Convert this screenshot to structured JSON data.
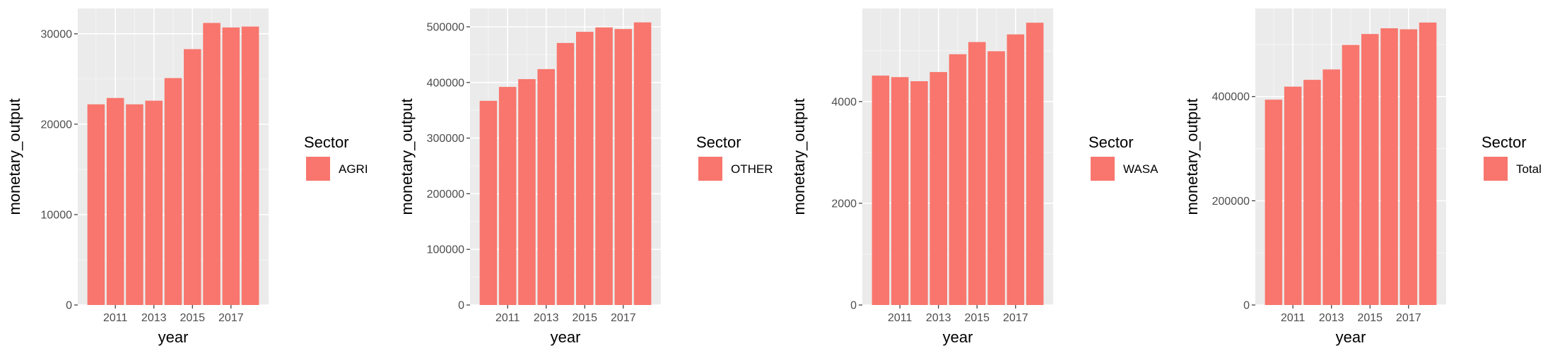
{
  "colors": {
    "panel_bg": "#ebebeb",
    "grid_major": "#ffffff",
    "bar_fill": "#f8766d",
    "tick_text": "#4d4d4d"
  },
  "chart_data": [
    {
      "type": "bar",
      "x": [
        2010,
        2011,
        2012,
        2013,
        2014,
        2015,
        2016,
        2017,
        2018
      ],
      "values": [
        22200,
        22900,
        22200,
        22600,
        25100,
        28300,
        31200,
        30700,
        30800
      ],
      "xlabel": "year",
      "ylabel": "monetary_output",
      "ylim": [
        0,
        32800
      ],
      "xticks": [
        2011,
        2013,
        2015,
        2017
      ],
      "yticks": [
        0,
        10000,
        20000,
        30000
      ],
      "ytick_labels": [
        "0",
        "10000",
        "20000",
        "30000"
      ],
      "legend_title": "Sector",
      "legend_label": "AGRI",
      "grid": true,
      "legend_position": "right"
    },
    {
      "type": "bar",
      "x": [
        2010,
        2011,
        2012,
        2013,
        2014,
        2015,
        2016,
        2017,
        2018
      ],
      "values": [
        367000,
        392000,
        406000,
        424000,
        471000,
        491000,
        499000,
        496000,
        508000
      ],
      "xlabel": "year",
      "ylabel": "monetary_output",
      "ylim": [
        0,
        533000
      ],
      "xticks": [
        2011,
        2013,
        2015,
        2017
      ],
      "yticks": [
        0,
        100000,
        200000,
        300000,
        400000,
        500000
      ],
      "ytick_labels": [
        "0",
        "100000",
        "200000",
        "300000",
        "400000",
        "500000"
      ],
      "legend_title": "Sector",
      "legend_label": "OTHER",
      "grid": true,
      "legend_position": "right"
    },
    {
      "type": "bar",
      "x": [
        2010,
        2011,
        2012,
        2013,
        2014,
        2015,
        2016,
        2017,
        2018
      ],
      "values": [
        4510,
        4480,
        4400,
        4580,
        4930,
        5170,
        4990,
        5320,
        5550
      ],
      "xlabel": "year",
      "ylabel": "monetary_output",
      "ylim": [
        0,
        5830
      ],
      "xticks": [
        2011,
        2013,
        2015,
        2017
      ],
      "yticks": [
        0,
        2000,
        4000
      ],
      "ytick_labels": [
        "0",
        "2000",
        "4000"
      ],
      "legend_title": "Sector",
      "legend_label": "WASA",
      "grid": true,
      "legend_position": "right"
    },
    {
      "type": "bar",
      "x": [
        2010,
        2011,
        2012,
        2013,
        2014,
        2015,
        2016,
        2017,
        2018
      ],
      "values": [
        394000,
        419000,
        432000,
        452000,
        499000,
        520000,
        531000,
        529000,
        542000
      ],
      "xlabel": "year",
      "ylabel": "monetary_output",
      "ylim": [
        0,
        569000
      ],
      "xticks": [
        2011,
        2013,
        2015,
        2017
      ],
      "yticks": [
        0,
        200000,
        400000
      ],
      "ytick_labels": [
        "0",
        "200000",
        "400000"
      ],
      "legend_title": "Sector",
      "legend_label": "Total",
      "grid": true,
      "legend_position": "right"
    }
  ]
}
